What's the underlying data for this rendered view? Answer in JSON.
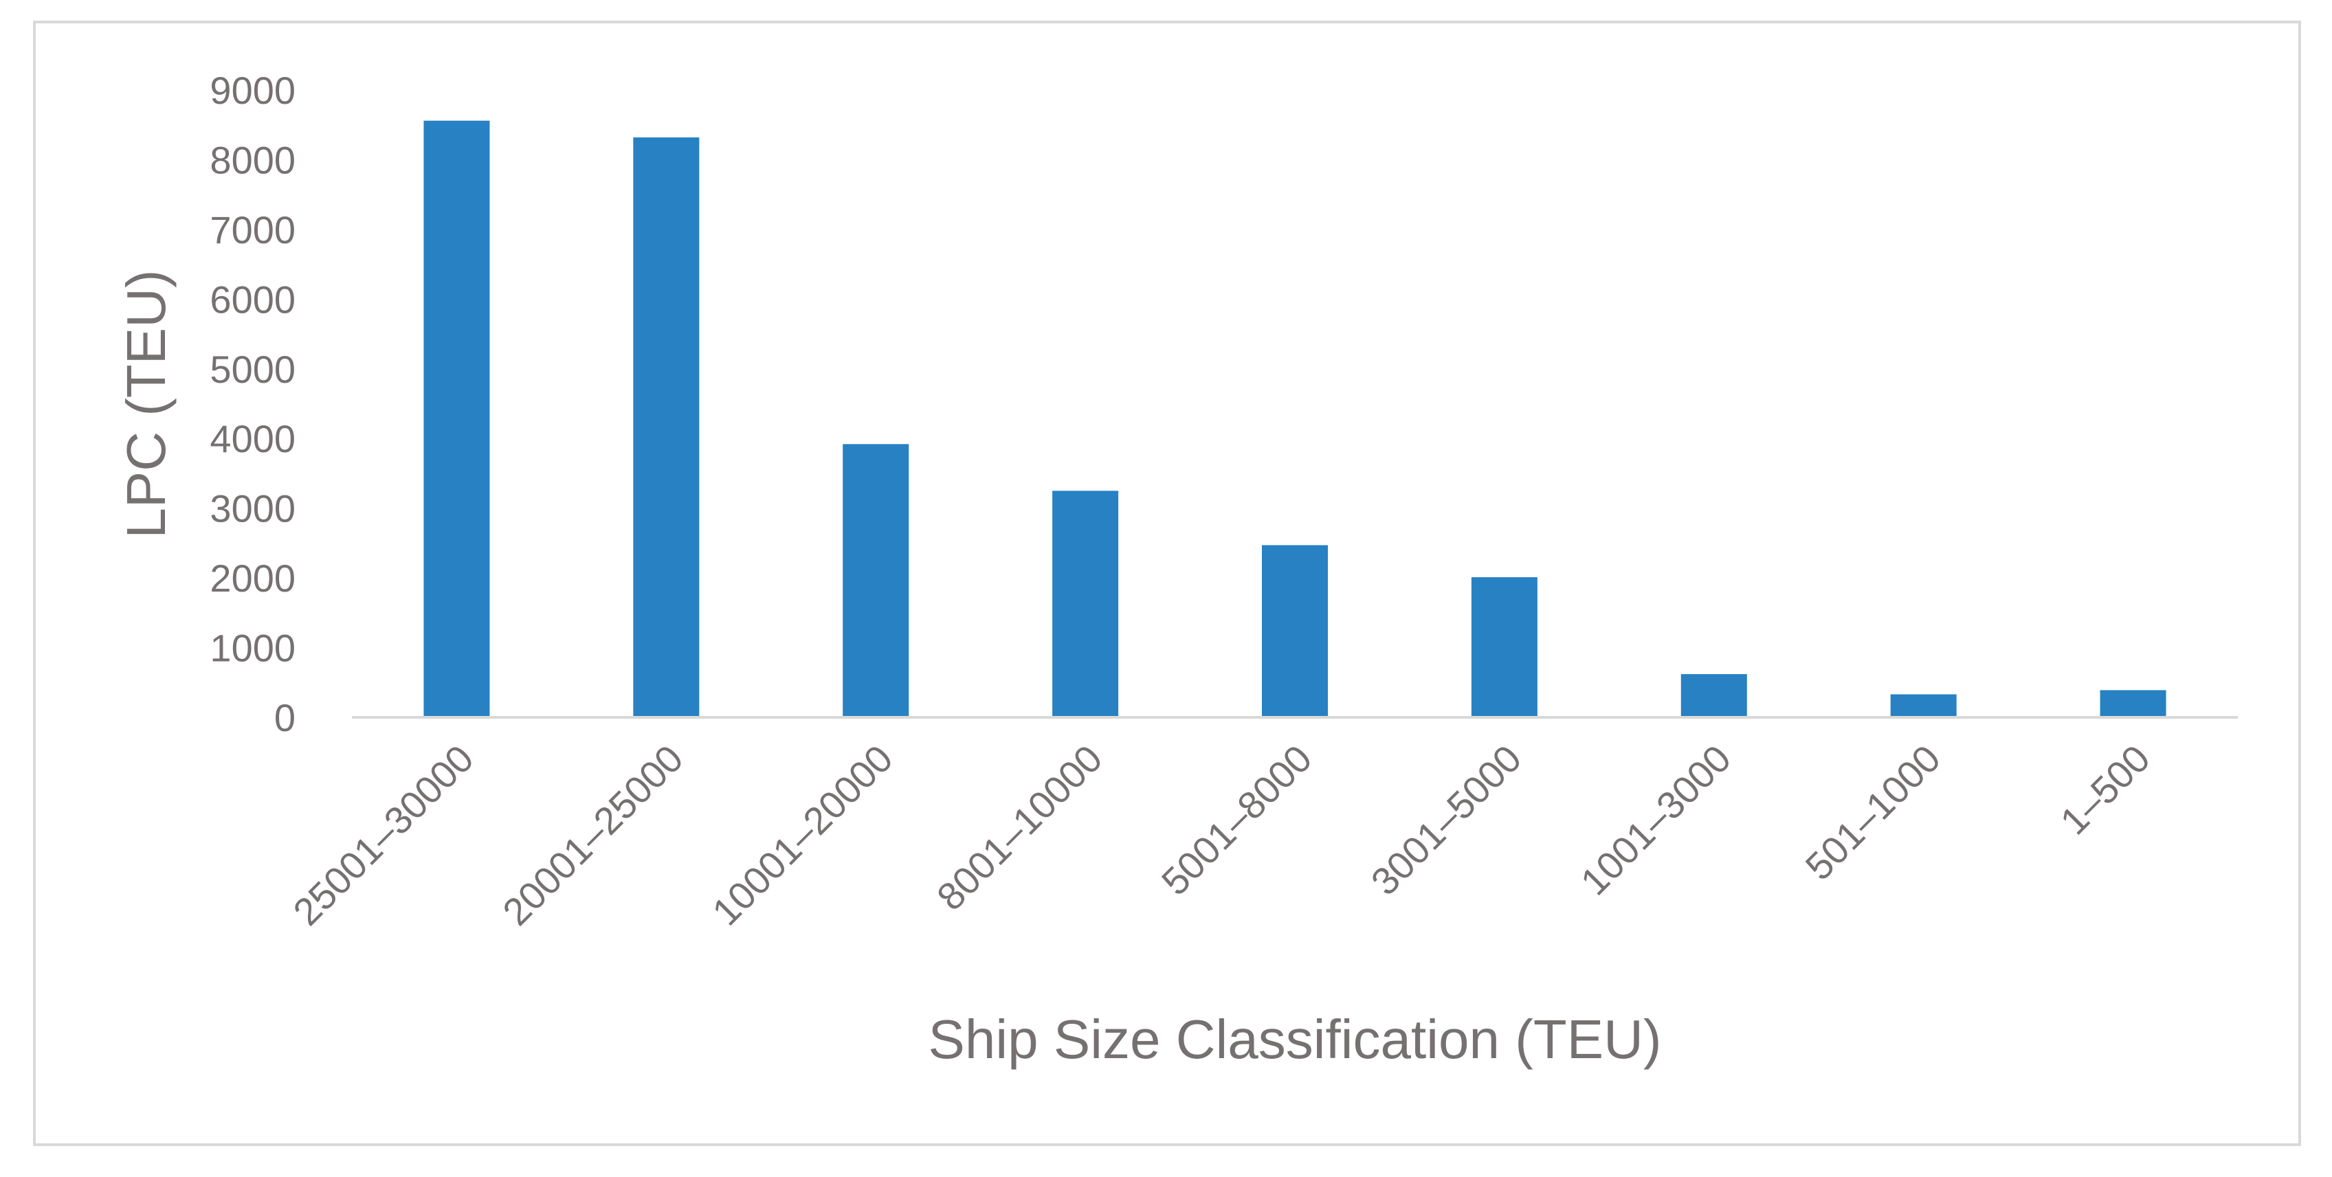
{
  "chart_data": {
    "type": "bar",
    "title": "",
    "xlabel": "Ship Size Classification (TEU)",
    "ylabel": "LPC (TEU)",
    "categories": [
      "25001–30000",
      "20001–25000",
      "10001–20000",
      "8001–10000",
      "5001–8000",
      "3001–5000",
      "1001–3000",
      "501–1000",
      "1–500"
    ],
    "values": [
      8560,
      8320,
      3920,
      3250,
      2470,
      2010,
      620,
      330,
      390
    ],
    "ylim": [
      0,
      9000
    ],
    "yticks": [
      0,
      1000,
      2000,
      3000,
      4000,
      5000,
      6000,
      7000,
      8000,
      9000
    ],
    "grid": false,
    "legend": "none",
    "bar_color": "#2781c3",
    "axis_color": "#d9d9d9",
    "text_color": "#767171"
  }
}
